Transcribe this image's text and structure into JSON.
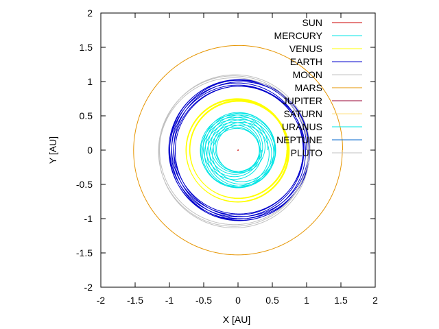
{
  "chart_data": {
    "type": "line",
    "title": "",
    "xlabel": "X [AU]",
    "ylabel": "Y [AU]",
    "xlim": [
      -2,
      2
    ],
    "ylim": [
      -2,
      2
    ],
    "xticks": [
      -2,
      -1.5,
      -1,
      -0.5,
      0,
      0.5,
      1,
      1.5,
      2
    ],
    "yticks": [
      -2,
      -1.5,
      -1,
      -0.5,
      0,
      0.5,
      1,
      1.5,
      2
    ],
    "grid": false,
    "legend_position": "top-right",
    "series": [
      {
        "name": "SUN",
        "color": "#cc0000",
        "orbit": {
          "cx": 0,
          "cy": 0,
          "r_min": 0.0,
          "r_max": 0.005,
          "turns": 1
        }
      },
      {
        "name": "MERCURY",
        "color": "#00e5e5",
        "orbit": {
          "cx": 0,
          "cy": 0,
          "r_min": 0.31,
          "r_max": 0.55,
          "turns": 14
        }
      },
      {
        "name": "VENUS",
        "color": "#ffff00",
        "orbit": {
          "cx": 0,
          "cy": 0,
          "r_min": 0.7,
          "r_max": 0.76,
          "turns": 12
        }
      },
      {
        "name": "EARTH",
        "color": "#0000cc",
        "orbit": {
          "cx": 0.02,
          "cy": 0,
          "r_min": 0.93,
          "r_max": 1.03,
          "turns": 8
        }
      },
      {
        "name": "MOON",
        "color": "#c0c0c0",
        "orbit": {
          "cx": -0.04,
          "cy": -0.02,
          "r_min": 1.06,
          "r_max": 1.12,
          "turns": 3
        }
      },
      {
        "name": "MARS",
        "color": "#e69500",
        "orbit": {
          "cx": 0,
          "cy": 0,
          "r_min": 1.52,
          "r_max": 1.53,
          "turns": 1
        }
      },
      {
        "name": "JUPITER",
        "color": "#990033",
        "orbit": null
      },
      {
        "name": "SATURN",
        "color": "#ffe080",
        "orbit": null
      },
      {
        "name": "URANUS",
        "color": "#00e5e5",
        "orbit": null
      },
      {
        "name": "NEPTUNE",
        "color": "#0066cc",
        "orbit": null
      },
      {
        "name": "PLUTO",
        "color": "#c0c0c0",
        "orbit": null
      }
    ]
  }
}
